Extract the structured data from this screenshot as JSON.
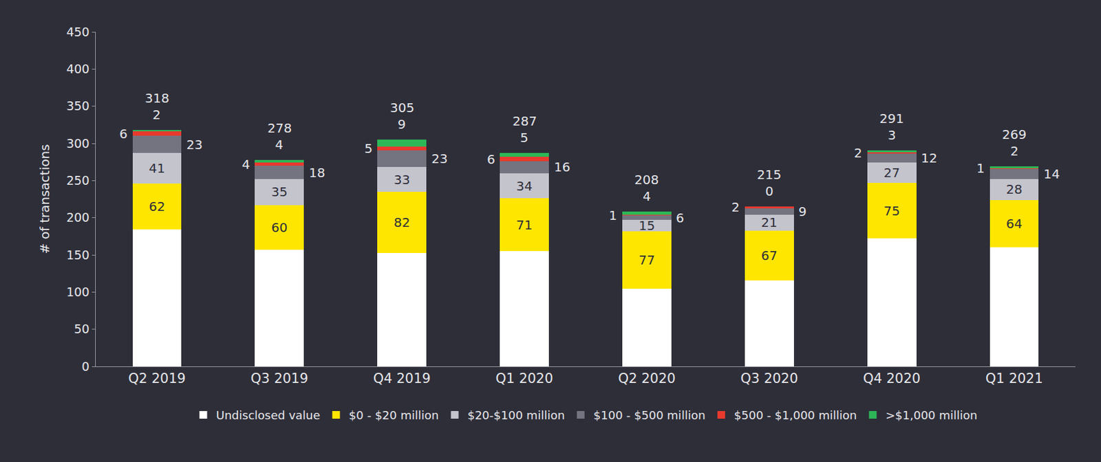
{
  "chart_data": {
    "type": "bar",
    "stacked": true,
    "grid": false,
    "legend": "bottom",
    "y_label": "# of transactions",
    "categories": [
      "Q2 2019",
      "Q3 2019",
      "Q4 2019",
      "Q1 2020",
      "Q2 2020",
      "Q3 2020",
      "Q4 2020",
      "Q1 2021"
    ],
    "ylim": [
      0,
      450
    ],
    "yticks": [
      0,
      50,
      100,
      150,
      200,
      250,
      300,
      350,
      400,
      450
    ],
    "totals": [
      318,
      278,
      305,
      287,
      208,
      215,
      291,
      269
    ],
    "series": [
      {
        "name": "Undisclosed value",
        "color": "#ffffff",
        "data_labels": false,
        "values": [
          184,
          157,
          153,
          155,
          105,
          116,
          172,
          160
        ]
      },
      {
        "name": "$0 - $20 million",
        "color": "#ffe600",
        "data_labels": true,
        "values": [
          62,
          60,
          82,
          71,
          77,
          67,
          75,
          64
        ]
      },
      {
        "name": "$20-$100 million",
        "color": "#c4c4cd",
        "data_labels": true,
        "values": [
          41,
          35,
          33,
          34,
          15,
          21,
          27,
          28
        ]
      },
      {
        "name": "$100 - $500 million",
        "color": "#747480",
        "data_labels": true,
        "values": [
          23,
          18,
          23,
          16,
          6,
          9,
          12,
          14
        ]
      },
      {
        "name": "$500 - $1,000 million",
        "color": "#e8392f",
        "data_labels": true,
        "values": [
          6,
          4,
          5,
          6,
          1,
          2,
          2,
          1
        ]
      },
      {
        "name": ">$1,000 million",
        "color": "#2db757",
        "data_labels": true,
        "values": [
          2,
          4,
          9,
          5,
          4,
          0,
          3,
          2
        ]
      }
    ]
  }
}
